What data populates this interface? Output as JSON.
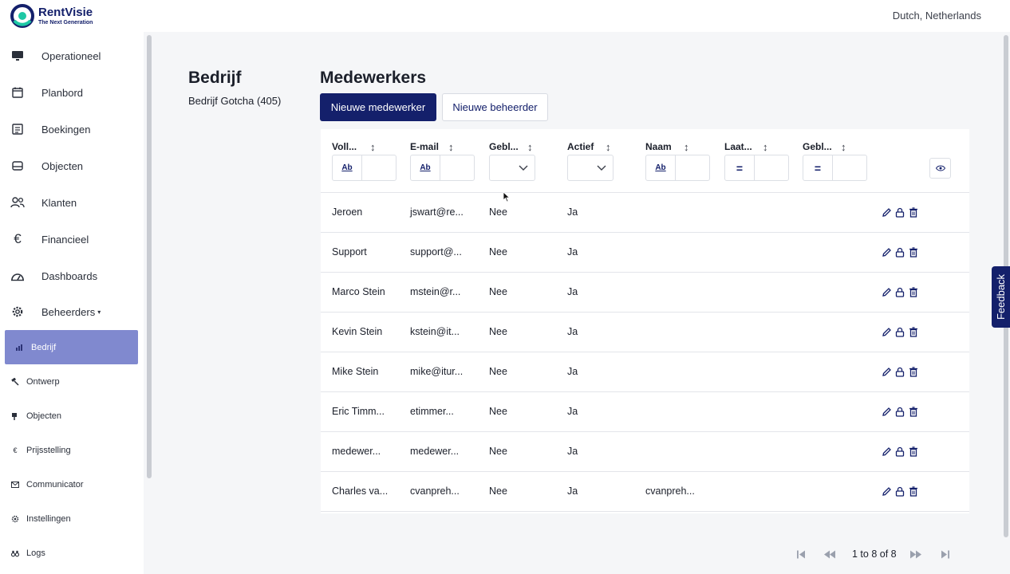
{
  "header": {
    "brand_name": "RentVisie",
    "brand_tagline": "The Next Generation",
    "locale": "Dutch, Netherlands"
  },
  "sidebar": {
    "items": [
      {
        "label": "Operationeel",
        "icon": "monitor-icon"
      },
      {
        "label": "Planbord",
        "icon": "calendar-icon"
      },
      {
        "label": "Boekingen",
        "icon": "bookings-icon"
      },
      {
        "label": "Objecten",
        "icon": "drawer-icon"
      },
      {
        "label": "Klanten",
        "icon": "users-icon"
      },
      {
        "label": "Financieel",
        "icon": "euro-icon"
      },
      {
        "label": "Dashboards",
        "icon": "gauge-icon"
      },
      {
        "label": "Beheerders",
        "icon": "gear-icon",
        "caret": "▾"
      }
    ],
    "subitems": [
      {
        "label": "Bedrijf",
        "icon": "chart-icon",
        "active": true
      },
      {
        "label": "Ontwerp",
        "icon": "hammer-icon"
      },
      {
        "label": "Objecten",
        "icon": "flag-icon"
      },
      {
        "label": "Prijsstelling",
        "icon": "euro-icon"
      },
      {
        "label": "Communicator",
        "icon": "mail-icon"
      },
      {
        "label": "Instellingen",
        "icon": "cog-icon"
      },
      {
        "label": "Logs",
        "icon": "binoculars-icon"
      }
    ]
  },
  "company": {
    "title": "Bedrijf",
    "name": "Bedrijf Gotcha (405)"
  },
  "main": {
    "title": "Medewerkers",
    "new_employee_label": "Nieuwe medewerker",
    "new_admin_label": "Nieuwe beheerder"
  },
  "grid": {
    "columns": [
      "Voll...",
      "E-mail",
      "Gebl...",
      "Actief",
      "Naam",
      "Laat...",
      "Gebl..."
    ],
    "filter_ops": {
      "text": "Ab",
      "equals": "="
    },
    "rows": [
      {
        "name": "Jeroen",
        "email": "jswart@re...",
        "blocked": "Nee",
        "active": "Ja",
        "username": ""
      },
      {
        "name": "Support",
        "email": "support@...",
        "blocked": "Nee",
        "active": "Ja",
        "username": ""
      },
      {
        "name": "Marco Stein",
        "email": "mstein@r...",
        "blocked": "Nee",
        "active": "Ja",
        "username": ""
      },
      {
        "name": "Kevin Stein",
        "email": "kstein@it...",
        "blocked": "Nee",
        "active": "Ja",
        "username": ""
      },
      {
        "name": "Mike Stein",
        "email": "mike@itur...",
        "blocked": "Nee",
        "active": "Ja",
        "username": ""
      },
      {
        "name": "Eric Timm...",
        "email": "etimmer...",
        "blocked": "Nee",
        "active": "Ja",
        "username": ""
      },
      {
        "name": "medewer...",
        "email": "medewer...",
        "blocked": "Nee",
        "active": "Ja",
        "username": ""
      },
      {
        "name": "Charles va...",
        "email": "cvanpreh...",
        "blocked": "Nee",
        "active": "Ja",
        "username": "cvanpreh..."
      }
    ]
  },
  "pagination": {
    "summary": "1 to 8 of 8"
  },
  "feedback_label": "Feedback",
  "colors": {
    "brand": "#14206b",
    "accent": "#1ec8a5",
    "active_nav": "#8089cf"
  }
}
